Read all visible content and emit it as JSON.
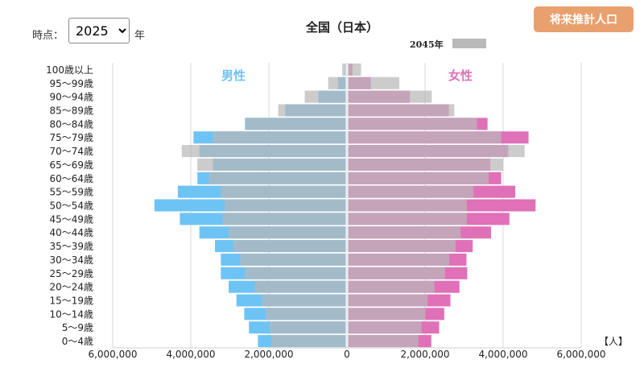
{
  "controls": {
    "time_label": "時点：",
    "year_value": "2025",
    "year_suffix": "年",
    "future_button": "将来推計人口"
  },
  "chart_data": {
    "type": "bar",
    "title": "全国（日本）",
    "orientation": "horizontal-pyramid",
    "overlay_label": "2045年",
    "overlay_color": "#b9b9b9",
    "male_label": "男性",
    "female_label": "女性",
    "unit_label": "【人】",
    "colors": {
      "male": "#6ec3f5",
      "female": "#e070b8",
      "male_text": "#6ec3f5",
      "female_text": "#e070b8"
    },
    "xlim": [
      -6000000,
      6000000
    ],
    "x_ticks": [
      -6000000,
      -4000000,
      -2000000,
      0,
      2000000,
      4000000,
      6000000
    ],
    "x_tick_labels": [
      "6,000,000",
      "4,000,000",
      "2,000,000",
      "0",
      "2,000,000",
      "4,000,000",
      "6,000,000"
    ],
    "grid": true,
    "categories": [
      "100歳以上",
      "95～99歳",
      "90～94歳",
      "85～89歳",
      "80～84歳",
      "75～79歳",
      "70～74歳",
      "65～69歳",
      "60～64歳",
      "55～59歳",
      "50～54歳",
      "45～49歳",
      "40～44歳",
      "35～39歳",
      "30～34歳",
      "25～29歳",
      "20～24歳",
      "15～19歳",
      "10～14歳",
      "5～9歳",
      "0～4歳"
    ],
    "series": [
      {
        "name": "男性",
        "values": [
          20000,
          200000,
          700000,
          1550000,
          2580000,
          3900000,
          3750000,
          3400000,
          3800000,
          4300000,
          4900000,
          4250000,
          3750000,
          3350000,
          3200000,
          3200000,
          3000000,
          2800000,
          2600000,
          2480000,
          2250000
        ]
      },
      {
        "name": "女性",
        "values": [
          110000,
          580000,
          1580000,
          2580000,
          3570000,
          4620000,
          4100000,
          3640000,
          3920000,
          4280000,
          4800000,
          4130000,
          3660000,
          3190000,
          3030000,
          3050000,
          2850000,
          2620000,
          2460000,
          2330000,
          2130000
        ]
      },
      {
        "name": "2045年 男性",
        "values": [
          90000,
          450000,
          1050000,
          1730000,
          2570000,
          3400000,
          4200000,
          3800000,
          3500000,
          3200000,
          3100000,
          3150000,
          3000000,
          2880000,
          2700000,
          2580000,
          2330000,
          2150000,
          2050000,
          1950000,
          1900000
        ]
      },
      {
        "name": "2045年 女性",
        "values": [
          330000,
          1310000,
          2140000,
          2720000,
          3300000,
          3920000,
          4520000,
          3970000,
          3600000,
          3210000,
          3040000,
          3040000,
          2880000,
          2750000,
          2590000,
          2480000,
          2210000,
          2040000,
          1980000,
          1880000,
          1800000
        ]
      }
    ]
  }
}
